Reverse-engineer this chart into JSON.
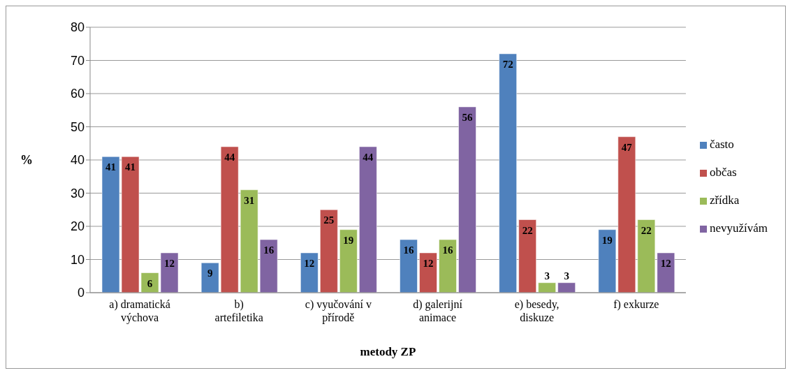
{
  "chart_data": {
    "type": "bar",
    "xlabel": "metody ZP",
    "ylabel": "%",
    "categories": [
      "a) dramatická výchova",
      "b) artefiletika",
      "c) vyučování v přírodě",
      "d) galerijní animace",
      "e) besedy, diskuze",
      "f) exkurze"
    ],
    "series": [
      {
        "name": "často",
        "color": "#4f81bd",
        "values": [
          41,
          9,
          12,
          16,
          72,
          19
        ]
      },
      {
        "name": "občas",
        "color": "#c0504d",
        "values": [
          41,
          44,
          25,
          12,
          22,
          47
        ]
      },
      {
        "name": "zřídka",
        "color": "#9bbb59",
        "values": [
          6,
          31,
          19,
          16,
          3,
          22
        ]
      },
      {
        "name": "nevyužívám",
        "color": "#8064a2",
        "values": [
          12,
          16,
          44,
          56,
          3,
          12
        ]
      }
    ],
    "ylim": [
      0,
      80
    ],
    "yticks": [
      0,
      10,
      20,
      30,
      40,
      50,
      60,
      70,
      80
    ],
    "grid": "y",
    "legend": "right",
    "data_labels": true
  }
}
